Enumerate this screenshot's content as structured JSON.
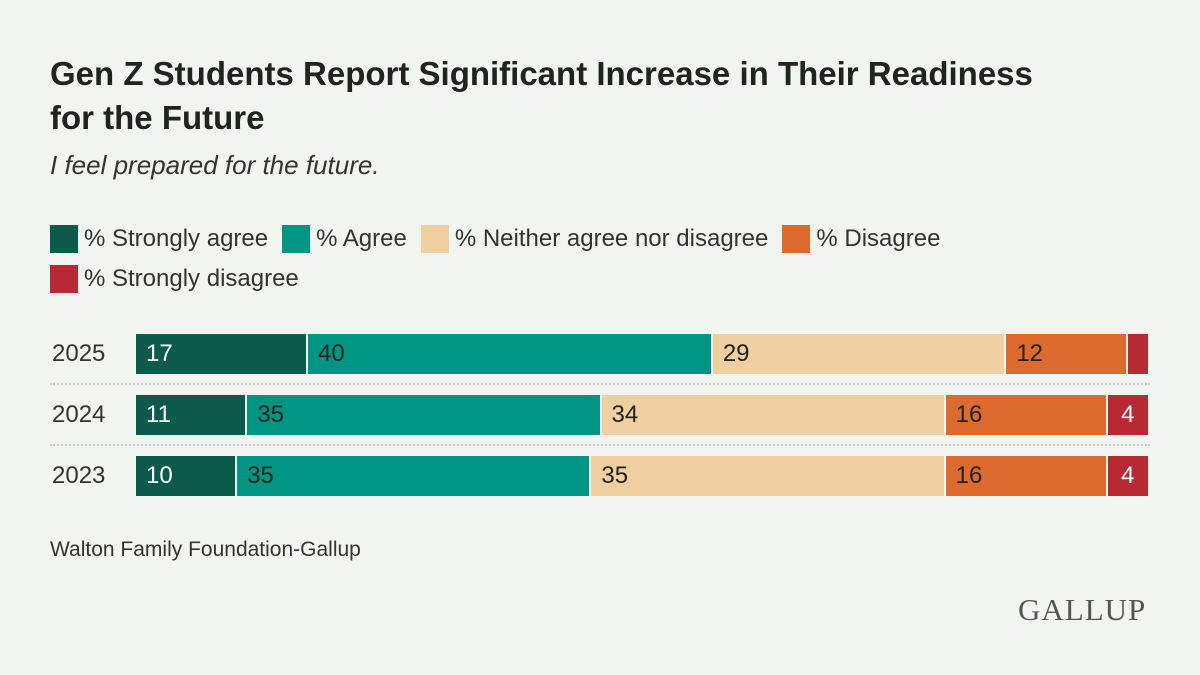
{
  "title": "Gen Z Students Report Significant Increase in Their Readiness for the Future",
  "subtitle": "I feel prepared for the future.",
  "source": "Walton Family Foundation-Gallup",
  "logo": "GALLUP",
  "chart_data": {
    "type": "bar",
    "orientation": "horizontal-stacked-100",
    "categories": [
      "2025",
      "2024",
      "2023"
    ],
    "legend_position": "top",
    "grid": false,
    "series": [
      {
        "name": "% Strongly agree",
        "color": "#0b5a4c",
        "label_color": "#ffffff",
        "values": [
          17,
          11,
          10
        ]
      },
      {
        "name": "% Agree",
        "color": "#009582",
        "label_color": "#222222",
        "values": [
          40,
          35,
          35
        ]
      },
      {
        "name": "% Neither agree nor disagree",
        "color": "#f0cfa0",
        "label_color": "#222222",
        "values": [
          29,
          34,
          35
        ]
      },
      {
        "name": "% Disagree",
        "color": "#dd6b30",
        "label_color": "#222222",
        "values": [
          12,
          16,
          16
        ]
      },
      {
        "name": "% Strongly disagree",
        "color": "#b82a33",
        "label_color": "#ffffff",
        "values": [
          2,
          4,
          4
        ],
        "labels_shown": [
          false,
          true,
          true
        ]
      }
    ]
  }
}
